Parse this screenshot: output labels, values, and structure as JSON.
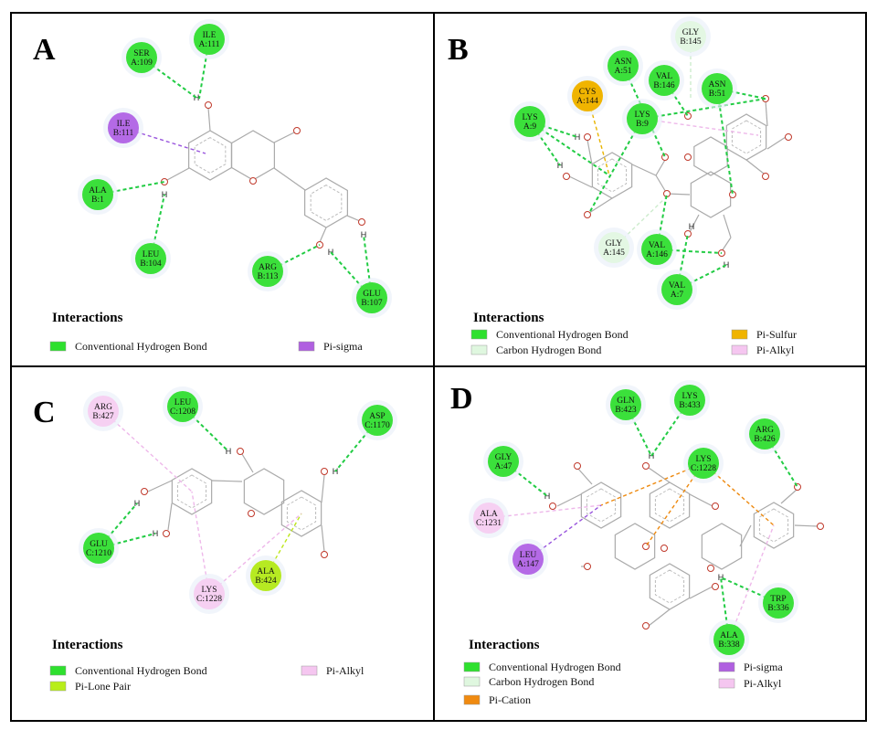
{
  "colors": {
    "conventional_hydrogen_bond": "#2ee02e",
    "carbon_hydrogen_bond": "#dff7df",
    "pi_sigma": "#b060e0",
    "pi_sulfur": "#f0b400",
    "pi_alkyl": "#f5c6f0",
    "pi_lone_pair": "#b8ee1a",
    "pi_cation": "#f08a10"
  },
  "panels": [
    {
      "letter": "A",
      "heading": "Interactions",
      "legend": [
        {
          "label": "Conventional Hydrogen Bond",
          "type": "conventional_hydrogen_bond"
        },
        {
          "label": "Pi-sigma",
          "type": "pi_sigma"
        }
      ],
      "residues": [
        {
          "name": "SER",
          "id": "A:109",
          "type": "conventional_hydrogen_bond"
        },
        {
          "name": "ILE",
          "id": "A:111",
          "type": "conventional_hydrogen_bond"
        },
        {
          "name": "ILE",
          "id": "B:111",
          "type": "pi_sigma"
        },
        {
          "name": "ALA",
          "id": "B:1",
          "type": "conventional_hydrogen_bond"
        },
        {
          "name": "LEU",
          "id": "B:104",
          "type": "conventional_hydrogen_bond"
        },
        {
          "name": "ARG",
          "id": "B:113",
          "type": "conventional_hydrogen_bond"
        },
        {
          "name": "GLU",
          "id": "B:107",
          "type": "conventional_hydrogen_bond"
        }
      ]
    },
    {
      "letter": "B",
      "heading": "Interactions",
      "legend": [
        {
          "label": "Conventional Hydrogen Bond",
          "type": "conventional_hydrogen_bond"
        },
        {
          "label": "Carbon Hydrogen Bond",
          "type": "carbon_hydrogen_bond"
        },
        {
          "label": "Pi-Sulfur",
          "type": "pi_sulfur"
        },
        {
          "label": "Pi-Alkyl",
          "type": "pi_alkyl"
        }
      ],
      "residues": [
        {
          "name": "GLY",
          "id": "B:145",
          "type": "carbon_hydrogen_bond"
        },
        {
          "name": "ASN",
          "id": "A:51",
          "type": "conventional_hydrogen_bond"
        },
        {
          "name": "VAL",
          "id": "B:146",
          "type": "conventional_hydrogen_bond"
        },
        {
          "name": "ASN",
          "id": "B:51",
          "type": "conventional_hydrogen_bond"
        },
        {
          "name": "CYS",
          "id": "A:144",
          "type": "pi_sulfur"
        },
        {
          "name": "LYS",
          "id": "A:9",
          "type": "conventional_hydrogen_bond"
        },
        {
          "name": "LYS",
          "id": "B:9",
          "type": "conventional_hydrogen_bond"
        },
        {
          "name": "GLY",
          "id": "A:145",
          "type": "carbon_hydrogen_bond"
        },
        {
          "name": "VAL",
          "id": "A:146",
          "type": "conventional_hydrogen_bond"
        },
        {
          "name": "VAL",
          "id": "A:7",
          "type": "conventional_hydrogen_bond"
        }
      ]
    },
    {
      "letter": "C",
      "heading": "Interactions",
      "legend": [
        {
          "label": "Conventional Hydrogen Bond",
          "type": "conventional_hydrogen_bond"
        },
        {
          "label": "Pi-Lone Pair",
          "type": "pi_lone_pair"
        },
        {
          "label": "Pi-Alkyl",
          "type": "pi_alkyl"
        }
      ],
      "residues": [
        {
          "name": "ARG",
          "id": "B:427",
          "type": "pi_alkyl"
        },
        {
          "name": "LEU",
          "id": "C:1208",
          "type": "conventional_hydrogen_bond"
        },
        {
          "name": "ASP",
          "id": "C:1170",
          "type": "conventional_hydrogen_bond"
        },
        {
          "name": "GLU",
          "id": "C:1210",
          "type": "conventional_hydrogen_bond"
        },
        {
          "name": "ALA",
          "id": "B:424",
          "type": "pi_lone_pair"
        },
        {
          "name": "LYS",
          "id": "C:1228",
          "type": "pi_alkyl"
        }
      ]
    },
    {
      "letter": "D",
      "heading": "Interactions",
      "legend": [
        {
          "label": "Conventional Hydrogen Bond",
          "type": "conventional_hydrogen_bond"
        },
        {
          "label": "Carbon Hydrogen Bond",
          "type": "carbon_hydrogen_bond"
        },
        {
          "label": "Pi-Cation",
          "type": "pi_cation"
        },
        {
          "label": "Pi-sigma",
          "type": "pi_sigma"
        },
        {
          "label": "Pi-Alkyl",
          "type": "pi_alkyl"
        }
      ],
      "residues": [
        {
          "name": "GLN",
          "id": "B:423",
          "type": "conventional_hydrogen_bond"
        },
        {
          "name": "LYS",
          "id": "B:433",
          "type": "conventional_hydrogen_bond"
        },
        {
          "name": "ARG",
          "id": "B:426",
          "type": "conventional_hydrogen_bond"
        },
        {
          "name": "GLY",
          "id": "A:47",
          "type": "conventional_hydrogen_bond"
        },
        {
          "name": "LYS",
          "id": "C:1228",
          "type": "conventional_hydrogen_bond"
        },
        {
          "name": "ALA",
          "id": "C:1231",
          "type": "pi_alkyl"
        },
        {
          "name": "LEU",
          "id": "A:147",
          "type": "pi_sigma"
        },
        {
          "name": "TRP",
          "id": "B:336",
          "type": "conventional_hydrogen_bond"
        },
        {
          "name": "ALA",
          "id": "B:338",
          "type": "conventional_hydrogen_bond"
        }
      ]
    }
  ]
}
